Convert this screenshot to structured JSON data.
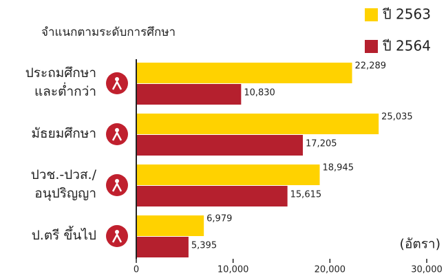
{
  "chart_data": {
    "type": "bar",
    "orientation": "horizontal",
    "title": "จำแนกตามระดับการศึกษา",
    "categories": [
      "ประถมศึกษา\nและต่ำกว่า",
      "มัธยมศึกษา",
      "ปวช.-ปวส./\nอนุปริญญา",
      "ป.ตรี ขึ้นไป"
    ],
    "series": [
      {
        "name": "ปี 2563",
        "color": "#ffd200",
        "values": [
          22289,
          25035,
          18945,
          6979
        ],
        "value_labels": [
          "22,289",
          "25,035",
          "18,945",
          "6,979"
        ]
      },
      {
        "name": "ปี 2564",
        "color": "#b5202e",
        "values": [
          10830,
          17205,
          15615,
          5395
        ],
        "value_labels": [
          "10,830",
          "17,205",
          "15,615",
          "5,395"
        ]
      }
    ],
    "xlabel": "(อัตรา)",
    "xlim": [
      0,
      30000
    ],
    "xticks": [
      0,
      {
        "value": 10000,
        "label": "10,000"
      },
      {
        "value": 20000,
        "label": "20,000"
      },
      {
        "value": 30000,
        "label": "30,000"
      }
    ]
  }
}
